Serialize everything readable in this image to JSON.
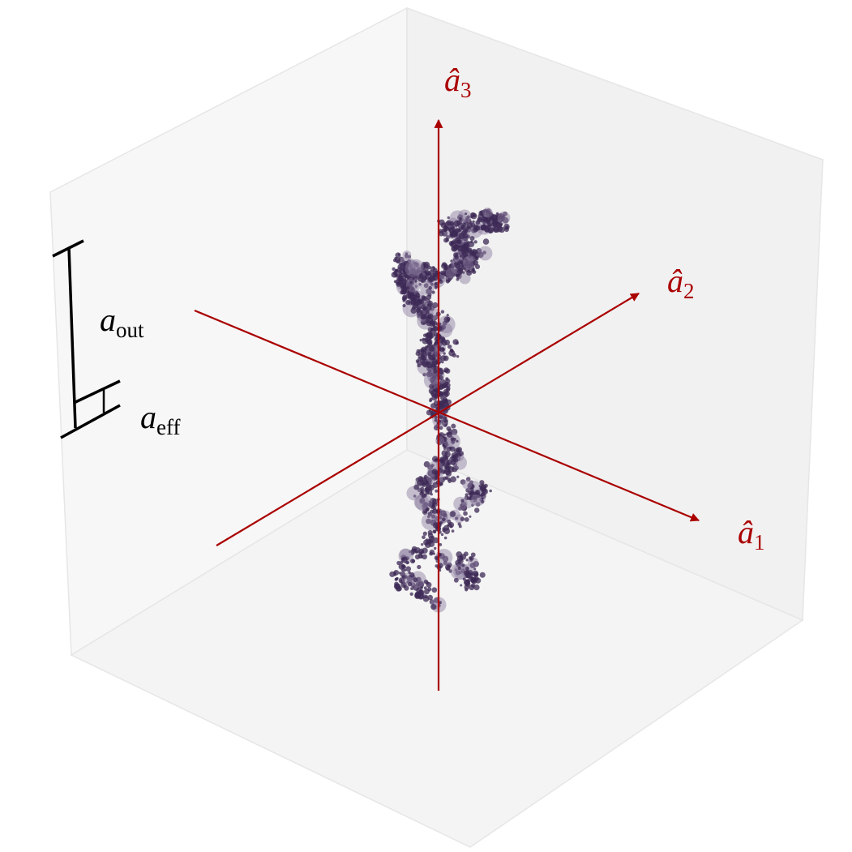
{
  "axes": [
    {
      "symbol": "â",
      "subscript": "1"
    },
    {
      "symbol": "â",
      "subscript": "2"
    },
    {
      "symbol": "â",
      "subscript": "3"
    }
  ],
  "scale_bars": [
    {
      "symbol": "a",
      "subscript": "out"
    },
    {
      "symbol": "a",
      "subscript": "eff"
    }
  ]
}
